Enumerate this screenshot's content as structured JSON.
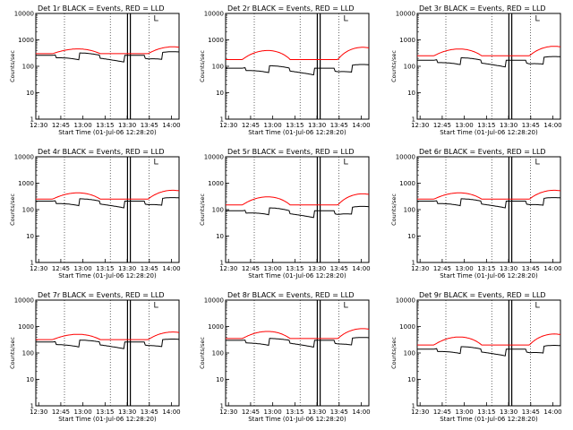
{
  "chart_data": [
    {
      "type": "line",
      "title": "Det 1r BLACK = Events, RED = LLD",
      "xlabel": "Start Time (01-Jul-06 12:28:20)",
      "ylabel": "Counts/sec",
      "yscale": "log",
      "ylim": [
        1,
        10000
      ],
      "x_ticks": [
        "12:30",
        "12:45",
        "13:00",
        "13:15",
        "13:30",
        "13:45",
        "14:00"
      ],
      "y_ticks": [
        "1",
        "10",
        "100",
        "1000",
        "10000"
      ],
      "series": [
        {
          "color": "#ff0000",
          "base": 300,
          "amp": 230,
          "dip_depth": 0
        },
        {
          "color": "#000000",
          "base": 260,
          "amp": 90,
          "dip_depth": 0.45
        }
      ],
      "dips": [
        [
          0.14,
          0.3
        ],
        [
          0.45,
          0.62
        ],
        [
          0.76,
          0.88
        ]
      ]
    },
    {
      "type": "line",
      "title": "Det 2r BLACK = Events, RED = LLD",
      "xlabel": "Start Time (01-Jul-06 12:28:20)",
      "ylabel": "Counts/sec",
      "yscale": "log",
      "ylim": [
        1,
        10000
      ],
      "x_ticks": [
        "12:30",
        "12:45",
        "13:00",
        "13:15",
        "13:30",
        "13:45",
        "14:00"
      ],
      "y_ticks": [
        "1",
        "10",
        "100",
        "1000",
        "10000"
      ],
      "series": [
        {
          "color": "#ff0000",
          "base": 180,
          "amp": 320,
          "dip_depth": 0
        },
        {
          "color": "#000000",
          "base": 85,
          "amp": 30,
          "dip_depth": 0.45
        }
      ],
      "dips": [
        [
          0.14,
          0.3
        ],
        [
          0.45,
          0.62
        ],
        [
          0.76,
          0.88
        ]
      ]
    },
    {
      "type": "line",
      "title": "Det 3r BLACK = Events, RED = LLD",
      "xlabel": "Start Time (01-Jul-06 12:28:20)",
      "ylabel": "Counts/sec",
      "yscale": "log",
      "ylim": [
        1,
        10000
      ],
      "x_ticks": [
        "12:30",
        "12:45",
        "13:00",
        "13:15",
        "13:30",
        "13:45",
        "14:00"
      ],
      "y_ticks": [
        "1",
        "10",
        "100",
        "1000",
        "10000"
      ],
      "series": [
        {
          "color": "#ff0000",
          "base": 250,
          "amp": 300,
          "dip_depth": 0
        },
        {
          "color": "#000000",
          "base": 170,
          "amp": 60,
          "dip_depth": 0.45
        }
      ],
      "dips": [
        [
          0.14,
          0.3
        ],
        [
          0.45,
          0.62
        ],
        [
          0.76,
          0.88
        ]
      ]
    },
    {
      "type": "line",
      "title": "Det 4r BLACK = Events, RED = LLD",
      "xlabel": "Start Time (01-Jul-06 12:28:20)",
      "ylabel": "Counts/sec",
      "yscale": "log",
      "ylim": [
        1,
        10000
      ],
      "x_ticks": [
        "12:30",
        "12:45",
        "13:00",
        "13:15",
        "13:30",
        "13:45",
        "14:00"
      ],
      "y_ticks": [
        "1",
        "10",
        "100",
        "1000",
        "10000"
      ],
      "series": [
        {
          "color": "#ff0000",
          "base": 250,
          "amp": 270,
          "dip_depth": 0
        },
        {
          "color": "#000000",
          "base": 210,
          "amp": 70,
          "dip_depth": 0.45
        }
      ],
      "dips": [
        [
          0.14,
          0.3
        ],
        [
          0.45,
          0.62
        ],
        [
          0.76,
          0.88
        ]
      ]
    },
    {
      "type": "line",
      "title": "Det 5r BLACK = Events, RED = LLD",
      "xlabel": "Start Time (01-Jul-06 12:28:20)",
      "ylabel": "Counts/sec",
      "yscale": "log",
      "ylim": [
        1,
        10000
      ],
      "x_ticks": [
        "12:30",
        "12:45",
        "13:00",
        "13:15",
        "13:30",
        "13:45",
        "14:00"
      ],
      "y_ticks": [
        "1",
        "10",
        "100",
        "1000",
        "10000"
      ],
      "series": [
        {
          "color": "#ff0000",
          "base": 150,
          "amp": 230,
          "dip_depth": 0
        },
        {
          "color": "#000000",
          "base": 90,
          "amp": 40,
          "dip_depth": 0.45
        }
      ],
      "dips": [
        [
          0.14,
          0.3
        ],
        [
          0.45,
          0.62
        ],
        [
          0.76,
          0.88
        ]
      ]
    },
    {
      "type": "line",
      "title": "Det 6r BLACK = Events, RED = LLD",
      "xlabel": "Start Time (01-Jul-06 12:28:20)",
      "ylabel": "Counts/sec",
      "yscale": "log",
      "ylim": [
        1,
        10000
      ],
      "x_ticks": [
        "12:30",
        "12:45",
        "13:00",
        "13:15",
        "13:30",
        "13:45",
        "14:00"
      ],
      "y_ticks": [
        "1",
        "10",
        "100",
        "1000",
        "10000"
      ],
      "series": [
        {
          "color": "#ff0000",
          "base": 250,
          "amp": 270,
          "dip_depth": 0
        },
        {
          "color": "#000000",
          "base": 210,
          "amp": 70,
          "dip_depth": 0.45
        }
      ],
      "dips": [
        [
          0.14,
          0.3
        ],
        [
          0.45,
          0.62
        ],
        [
          0.76,
          0.88
        ]
      ]
    },
    {
      "type": "line",
      "title": "Det 7r BLACK = Events, RED = LLD",
      "xlabel": "Start Time (01-Jul-06 12:28:20)",
      "ylabel": "Counts/sec",
      "yscale": "log",
      "ylim": [
        1,
        10000
      ],
      "x_ticks": [
        "12:30",
        "12:45",
        "13:00",
        "13:15",
        "13:30",
        "13:45",
        "14:00"
      ],
      "y_ticks": [
        "1",
        "10",
        "100",
        "1000",
        "10000"
      ],
      "series": [
        {
          "color": "#ff0000",
          "base": 320,
          "amp": 280,
          "dip_depth": 0
        },
        {
          "color": "#000000",
          "base": 260,
          "amp": 70,
          "dip_depth": 0.45
        }
      ],
      "dips": [
        [
          0.14,
          0.3
        ],
        [
          0.45,
          0.62
        ],
        [
          0.76,
          0.88
        ]
      ]
    },
    {
      "type": "line",
      "title": "Det 8r BLACK = Events, RED = LLD",
      "xlabel": "Start Time (01-Jul-06 12:28:20)",
      "ylabel": "Counts/sec",
      "yscale": "log",
      "ylim": [
        1,
        10000
      ],
      "x_ticks": [
        "12:30",
        "12:45",
        "13:00",
        "13:15",
        "13:30",
        "13:45",
        "14:00"
      ],
      "y_ticks": [
        "1",
        "10",
        "100",
        "1000",
        "10000"
      ],
      "series": [
        {
          "color": "#ff0000",
          "base": 350,
          "amp": 450,
          "dip_depth": 0
        },
        {
          "color": "#000000",
          "base": 300,
          "amp": 80,
          "dip_depth": 0.45
        }
      ],
      "dips": [
        [
          0.14,
          0.3
        ],
        [
          0.45,
          0.62
        ],
        [
          0.76,
          0.88
        ]
      ]
    },
    {
      "type": "line",
      "title": "Det 9r BLACK = Events, RED = LLD",
      "xlabel": "Start Time (01-Jul-06 12:28:20)",
      "ylabel": "Counts/sec",
      "yscale": "log",
      "ylim": [
        1,
        10000
      ],
      "x_ticks": [
        "12:30",
        "12:45",
        "13:00",
        "13:15",
        "13:30",
        "13:45",
        "14:00"
      ],
      "y_ticks": [
        "1",
        "10",
        "100",
        "1000",
        "10000"
      ],
      "series": [
        {
          "color": "#ff0000",
          "base": 200,
          "amp": 300,
          "dip_depth": 0
        },
        {
          "color": "#000000",
          "base": 140,
          "amp": 50,
          "dip_depth": 0.45
        }
      ],
      "dips": [
        [
          0.14,
          0.3
        ],
        [
          0.45,
          0.62
        ],
        [
          0.76,
          0.88
        ]
      ]
    }
  ]
}
